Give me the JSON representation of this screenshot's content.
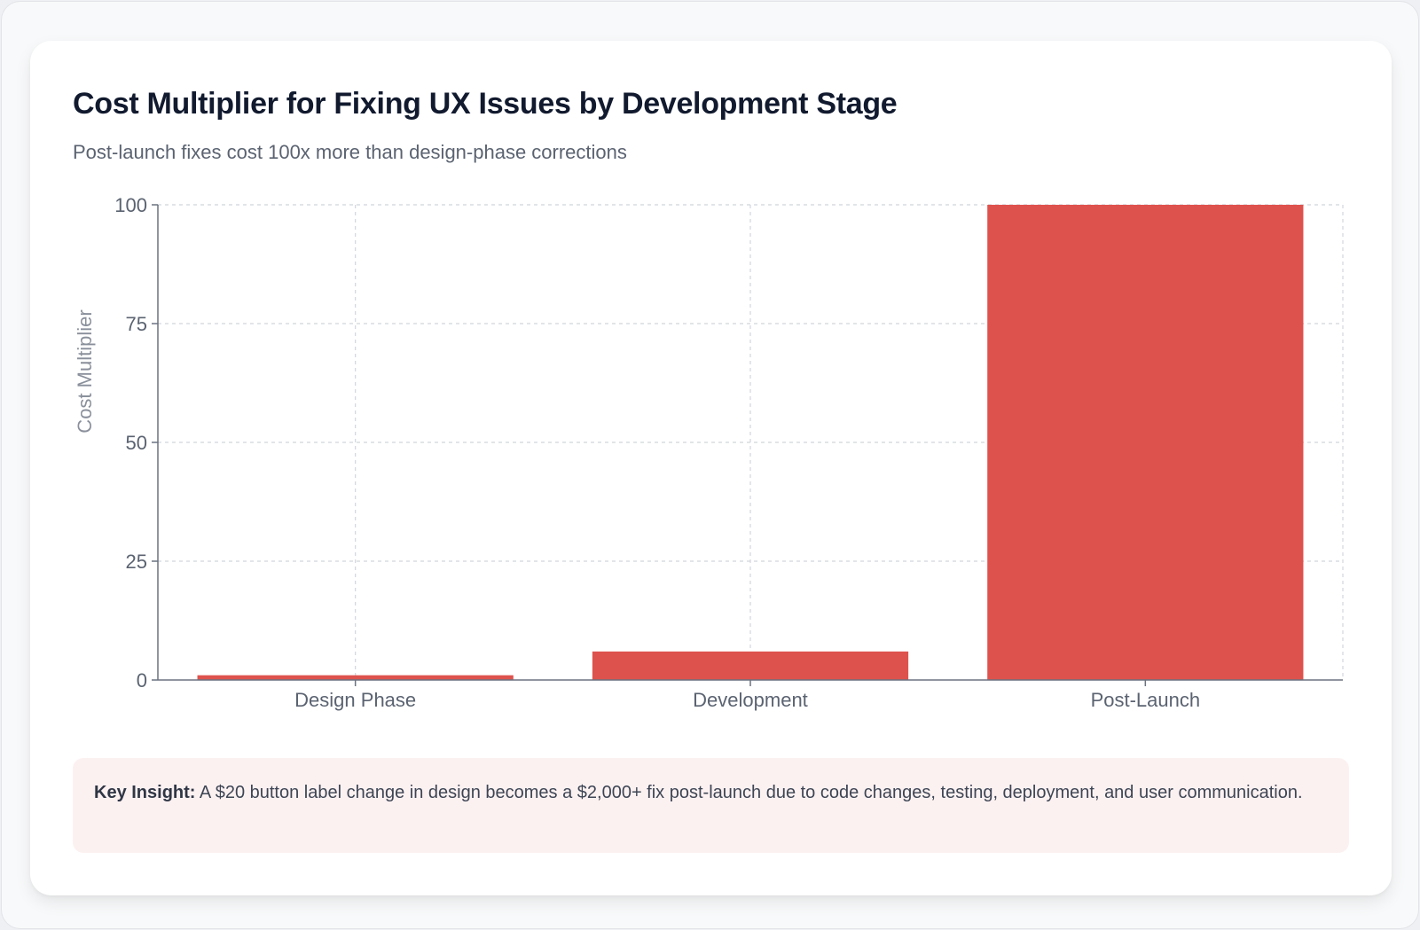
{
  "header": {
    "title": "Cost Multiplier for Fixing UX Issues by Development Stage",
    "subtitle": "Post-launch fixes cost 100x more than design-phase corrections"
  },
  "insight": {
    "label": "Key Insight:",
    "text": " A $20 button label change in design becomes a $2,000+ fix post-launch due to code changes, testing, deployment, and user communication."
  },
  "colors": {
    "bar": "#de524d",
    "axis": "#6b7280",
    "grid": "#d1d5db",
    "insight_bg": "#fcf1f1"
  },
  "chart_data": {
    "type": "bar",
    "title": "Cost Multiplier for Fixing UX Issues by Development Stage",
    "subtitle": "Post-launch fixes cost 100x more than design-phase corrections",
    "categories": [
      "Design Phase",
      "Development",
      "Post-Launch"
    ],
    "values": [
      1,
      6,
      100
    ],
    "xlabel": "",
    "ylabel": "Cost Multiplier",
    "ylim": [
      0,
      100
    ],
    "yticks": [
      0,
      25,
      50,
      75,
      100
    ],
    "grid": true,
    "legend": null
  }
}
